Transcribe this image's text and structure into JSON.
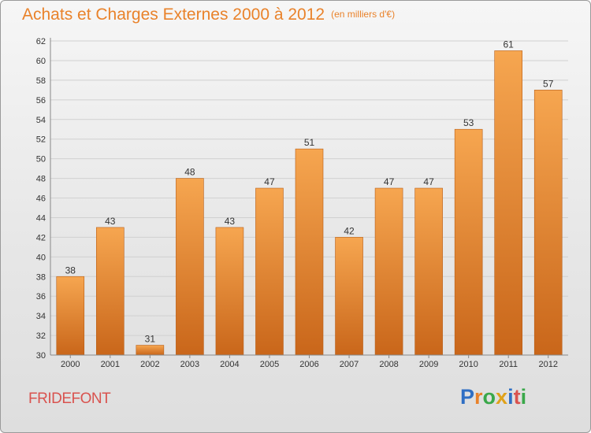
{
  "title": "Achats et Charges Externes 2000 à 2012",
  "unit": "(en milliers d'€)",
  "commune": "FRIDEFONT",
  "logo": {
    "text": "Proxiti",
    "letter_colors": [
      "#2f6fc4",
      "#e9822a",
      "#3aa84a",
      "#e0a21a",
      "#2f6fc4",
      "#d9534f",
      "#3aa84a"
    ]
  },
  "colors": {
    "bar_top": "#f6a650",
    "bar_bottom": "#c9661a",
    "grid": "#d0d0d0",
    "axis_text": "#333333",
    "title": "#e9822a"
  },
  "chart_data": {
    "type": "bar",
    "title": "Achats et Charges Externes 2000 à 2012",
    "subtitle": "(en milliers d'€)",
    "categories": [
      "2000",
      "2001",
      "2002",
      "2003",
      "2004",
      "2005",
      "2006",
      "2007",
      "2008",
      "2009",
      "2010",
      "2011",
      "2012"
    ],
    "values": [
      38,
      43,
      31,
      48,
      43,
      47,
      51,
      42,
      47,
      47,
      53,
      61,
      57
    ],
    "ylim": [
      30,
      62
    ],
    "yticks": [
      30,
      32,
      34,
      36,
      38,
      40,
      42,
      44,
      46,
      48,
      50,
      52,
      54,
      56,
      58,
      60,
      62
    ],
    "grid": true,
    "xlabel": "",
    "ylabel": ""
  }
}
